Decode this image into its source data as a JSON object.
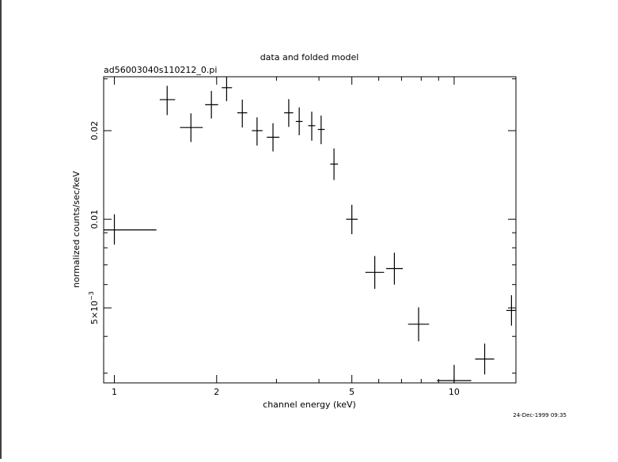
{
  "chart_data": {
    "type": "scatter",
    "title": "data and folded model",
    "subtitle": "ad56003040s110212_0.pi",
    "xlabel": "channel energy (keV)",
    "ylabel": "normalized counts/sec/keV",
    "timestamp": "24-Dec-1999 09:35",
    "x_scale": "log",
    "y_scale": "log",
    "xlim": [
      0.93,
      15.2
    ],
    "ylim": [
      0.00278,
      0.0305
    ],
    "grid": false,
    "x_major_ticks": [
      1,
      2,
      5,
      10
    ],
    "x_tick_labels": [
      "1",
      "2",
      "5",
      "10"
    ],
    "x_minor_ticks": [
      3,
      4,
      6,
      7,
      8,
      9
    ],
    "y_major_ticks": [
      0.005,
      0.01,
      0.02
    ],
    "y_tick_labels": [
      {
        "mantissa": "5×10",
        "exponent": "−3"
      },
      {
        "mantissa": "0.01",
        "exponent": ""
      },
      {
        "mantissa": "0.02",
        "exponent": ""
      }
    ],
    "y_minor_ticks": [
      0.003,
      0.004,
      0.006,
      0.007,
      0.008,
      0.009,
      0.03
    ],
    "points": [
      {
        "x": 1.0,
        "xlo": 0.93,
        "xhi": 1.33,
        "y": 0.0092,
        "ylo": 0.0082,
        "yhi": 0.0104
      },
      {
        "x": 1.43,
        "xlo": 1.36,
        "xhi": 1.51,
        "y": 0.0255,
        "ylo": 0.0226,
        "yhi": 0.0284
      },
      {
        "x": 1.68,
        "xlo": 1.56,
        "xhi": 1.82,
        "y": 0.0205,
        "ylo": 0.0183,
        "yhi": 0.0229
      },
      {
        "x": 1.93,
        "xlo": 1.85,
        "xhi": 2.02,
        "y": 0.0245,
        "ylo": 0.022,
        "yhi": 0.0273
      },
      {
        "x": 2.14,
        "xlo": 2.07,
        "xhi": 2.22,
        "y": 0.028,
        "ylo": 0.0252,
        "yhi": 0.0305
      },
      {
        "x": 2.38,
        "xlo": 2.3,
        "xhi": 2.46,
        "y": 0.023,
        "ylo": 0.0205,
        "yhi": 0.0255
      },
      {
        "x": 2.63,
        "xlo": 2.54,
        "xhi": 2.73,
        "y": 0.02,
        "ylo": 0.0178,
        "yhi": 0.0222
      },
      {
        "x": 2.93,
        "xlo": 2.81,
        "xhi": 3.06,
        "y": 0.019,
        "ylo": 0.017,
        "yhi": 0.0212
      },
      {
        "x": 3.26,
        "xlo": 3.16,
        "xhi": 3.36,
        "y": 0.023,
        "ylo": 0.0206,
        "yhi": 0.0256
      },
      {
        "x": 3.5,
        "xlo": 3.42,
        "xhi": 3.58,
        "y": 0.0215,
        "ylo": 0.0193,
        "yhi": 0.024
      },
      {
        "x": 3.81,
        "xlo": 3.72,
        "xhi": 3.9,
        "y": 0.0208,
        "ylo": 0.0185,
        "yhi": 0.0232
      },
      {
        "x": 4.06,
        "xlo": 3.97,
        "xhi": 4.16,
        "y": 0.0202,
        "ylo": 0.018,
        "yhi": 0.0225
      },
      {
        "x": 4.43,
        "xlo": 4.32,
        "xhi": 4.55,
        "y": 0.0154,
        "ylo": 0.0136,
        "yhi": 0.0174
      },
      {
        "x": 5.0,
        "xlo": 4.81,
        "xhi": 5.2,
        "y": 0.01,
        "ylo": 0.0089,
        "yhi": 0.0112
      },
      {
        "x": 5.84,
        "xlo": 5.48,
        "xhi": 6.22,
        "y": 0.0066,
        "ylo": 0.0058,
        "yhi": 0.0075
      },
      {
        "x": 6.67,
        "xlo": 6.31,
        "xhi": 7.06,
        "y": 0.0068,
        "ylo": 0.006,
        "yhi": 0.0077
      },
      {
        "x": 7.86,
        "xlo": 7.32,
        "xhi": 8.44,
        "y": 0.0044,
        "ylo": 0.00385,
        "yhi": 0.00502
      },
      {
        "x": 10.0,
        "xlo": 8.9,
        "xhi": 11.23,
        "y": 0.00283,
        "ylo": 0.0025,
        "yhi": 0.0032
      },
      {
        "x": 12.3,
        "xlo": 11.53,
        "xhi": 13.12,
        "y": 0.00335,
        "ylo": 0.00297,
        "yhi": 0.00378
      },
      {
        "x": 14.75,
        "xlo": 14.25,
        "xhi": 15.2,
        "y": 0.0049,
        "ylo": 0.00435,
        "yhi": 0.00552
      }
    ]
  }
}
